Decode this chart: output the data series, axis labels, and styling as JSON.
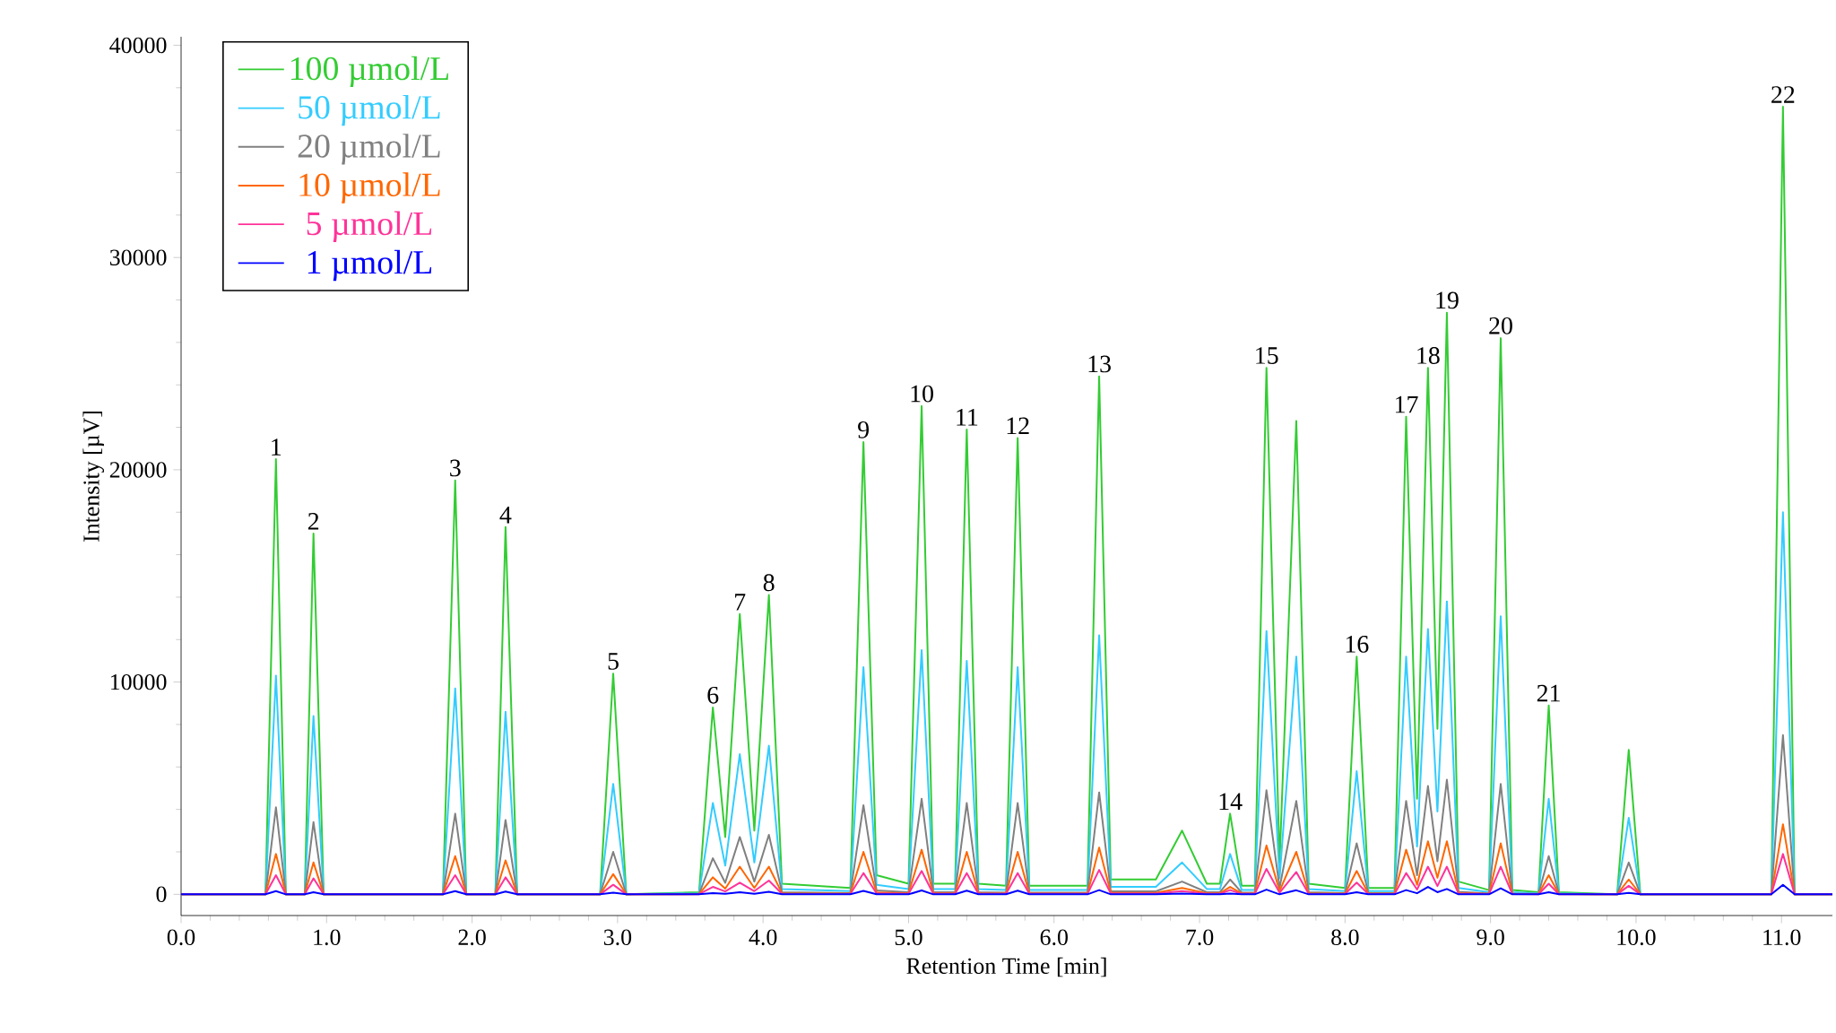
{
  "chart_data": {
    "type": "line",
    "xlabel": "Retention Time [min]",
    "ylabel": "Intensity [µV]",
    "xlim": [
      0,
      11.35
    ],
    "ylim": [
      -1000,
      40400
    ],
    "xticks": [
      {
        "value": 0,
        "label": "0.0"
      },
      {
        "value": 1,
        "label": "1.0"
      },
      {
        "value": 2,
        "label": "2.0"
      },
      {
        "value": 3,
        "label": "3.0"
      },
      {
        "value": 4,
        "label": "4.0"
      },
      {
        "value": 5,
        "label": "5.0"
      },
      {
        "value": 6,
        "label": "6.0"
      },
      {
        "value": 7,
        "label": "7.0"
      },
      {
        "value": 8,
        "label": "8.0"
      },
      {
        "value": 9,
        "label": "9.0"
      },
      {
        "value": 10,
        "label": "10.0"
      },
      {
        "value": 11,
        "label": "11.0"
      }
    ],
    "yticks": [
      0,
      10000,
      20000,
      30000,
      40000
    ],
    "legend": "top left",
    "x": [
      0,
      0.58,
      0.652,
      0.72,
      0.85,
      0.91,
      0.98,
      1.8,
      1.884,
      1.96,
      2.16,
      2.23,
      2.31,
      2.88,
      2.97,
      3.06,
      3.56,
      3.655,
      3.74,
      3.84,
      3.94,
      4.04,
      4.13,
      4.6,
      4.69,
      4.78,
      5.0,
      5.09,
      5.17,
      5.32,
      5.4,
      5.48,
      5.67,
      5.75,
      5.83,
      6.23,
      6.31,
      6.39,
      6.7,
      6.88,
      7.05,
      7.14,
      7.21,
      7.29,
      7.38,
      7.46,
      7.55,
      7.665,
      7.75,
      8.0,
      8.08,
      8.16,
      8.34,
      8.42,
      8.495,
      8.57,
      8.635,
      8.7,
      8.78,
      8.99,
      9.07,
      9.15,
      9.33,
      9.4,
      9.47,
      9.87,
      9.95,
      10.03,
      10.5,
      10.93,
      11.01,
      11.09,
      11.35
    ],
    "series": [
      {
        "name": "100 µmol/L",
        "color": "#33cc33",
        "values": [
          0,
          0,
          20500,
          0,
          0,
          17000,
          0,
          0,
          19500,
          0,
          0,
          17300,
          0,
          0,
          10400,
          0,
          100,
          8800,
          2700,
          13200,
          3000,
          14100,
          500,
          300,
          21300,
          900,
          500,
          23000,
          500,
          500,
          21900,
          500,
          400,
          21500,
          400,
          400,
          24400,
          700,
          700,
          3000,
          500,
          500,
          3800,
          400,
          400,
          24800,
          1500,
          22300,
          500,
          300,
          11200,
          300,
          300,
          22500,
          4500,
          24800,
          7800,
          27400,
          600,
          200,
          26200,
          200,
          100,
          8900,
          100,
          0,
          6800,
          0,
          0,
          0,
          37100,
          0,
          0
        ]
      },
      {
        "name": "50 µmol/L",
        "color": "#33ccff",
        "values": [
          0,
          0,
          10300,
          0,
          0,
          8400,
          0,
          0,
          9700,
          0,
          0,
          8600,
          0,
          0,
          5200,
          0,
          50,
          4300,
          1350,
          6600,
          1500,
          7000,
          250,
          150,
          10700,
          450,
          250,
          11500,
          250,
          250,
          11000,
          250,
          200,
          10700,
          200,
          200,
          12200,
          350,
          350,
          1500,
          250,
          250,
          1900,
          200,
          200,
          12400,
          750,
          11200,
          250,
          150,
          5800,
          150,
          150,
          11200,
          2250,
          12500,
          3900,
          13800,
          300,
          100,
          13100,
          100,
          50,
          4500,
          50,
          0,
          3600,
          0,
          0,
          0,
          18000,
          0,
          0
        ]
      },
      {
        "name": "20 µmol/L",
        "color": "#808080",
        "values": [
          0,
          0,
          4100,
          0,
          0,
          3400,
          0,
          0,
          3800,
          0,
          0,
          3500,
          0,
          0,
          2000,
          0,
          20,
          1700,
          540,
          2700,
          600,
          2800,
          100,
          60,
          4200,
          180,
          100,
          4500,
          100,
          100,
          4300,
          100,
          80,
          4300,
          80,
          80,
          4800,
          140,
          140,
          600,
          100,
          100,
          700,
          80,
          80,
          4900,
          300,
          4400,
          100,
          60,
          2400,
          60,
          60,
          4400,
          900,
          5100,
          1560,
          5400,
          120,
          40,
          5200,
          40,
          20,
          1800,
          20,
          0,
          1500,
          0,
          0,
          0,
          7500,
          0,
          0
        ]
      },
      {
        "name": "10 µmol/L",
        "color": "#ff6600",
        "values": [
          0,
          0,
          1900,
          0,
          0,
          1500,
          0,
          0,
          1800,
          0,
          0,
          1600,
          0,
          0,
          950,
          0,
          10,
          800,
          270,
          1300,
          300,
          1300,
          50,
          30,
          2000,
          90,
          50,
          2100,
          50,
          50,
          2000,
          50,
          40,
          2000,
          40,
          40,
          2200,
          70,
          70,
          300,
          50,
          50,
          350,
          40,
          40,
          2300,
          150,
          2000,
          50,
          30,
          1100,
          30,
          30,
          2100,
          450,
          2500,
          780,
          2500,
          60,
          20,
          2400,
          20,
          10,
          900,
          10,
          0,
          700,
          0,
          0,
          0,
          3300,
          0,
          0
        ]
      },
      {
        "name": "5 µmol/L",
        "color": "#ff3399",
        "values": [
          0,
          0,
          900,
          0,
          0,
          750,
          0,
          0,
          900,
          0,
          0,
          800,
          0,
          0,
          450,
          0,
          5,
          350,
          135,
          550,
          150,
          650,
          25,
          15,
          1000,
          45,
          25,
          1100,
          25,
          25,
          1000,
          25,
          20,
          1000,
          20,
          20,
          1150,
          35,
          35,
          150,
          25,
          25,
          200,
          20,
          20,
          1200,
          75,
          1050,
          25,
          15,
          550,
          15,
          15,
          1000,
          225,
          1300,
          390,
          1300,
          30,
          10,
          1300,
          10,
          5,
          500,
          5,
          0,
          400,
          0,
          0,
          0,
          1900,
          0,
          0
        ]
      },
      {
        "name": "1 µmol/L",
        "color": "#0000ff",
        "values": [
          0,
          0,
          150,
          0,
          0,
          100,
          0,
          0,
          150,
          0,
          0,
          130,
          0,
          0,
          80,
          0,
          0,
          60,
          20,
          100,
          20,
          120,
          0,
          0,
          160,
          0,
          0,
          180,
          0,
          0,
          170,
          0,
          0,
          170,
          0,
          0,
          200,
          0,
          0,
          30,
          0,
          0,
          40,
          0,
          0,
          220,
          0,
          190,
          0,
          0,
          100,
          0,
          0,
          200,
          50,
          350,
          100,
          250,
          0,
          0,
          280,
          0,
          0,
          100,
          0,
          0,
          70,
          0,
          0,
          0,
          450,
          0,
          0
        ]
      }
    ],
    "annotations": [
      {
        "text": "1",
        "x": 0.652,
        "y": 20500
      },
      {
        "text": "2",
        "x": 0.91,
        "y": 17000
      },
      {
        "text": "3",
        "x": 1.884,
        "y": 19500
      },
      {
        "text": "4",
        "x": 2.23,
        "y": 17300
      },
      {
        "text": "5",
        "x": 2.97,
        "y": 10400
      },
      {
        "text": "6",
        "x": 3.655,
        "y": 8800
      },
      {
        "text": "7",
        "x": 3.84,
        "y": 13200
      },
      {
        "text": "8",
        "x": 4.04,
        "y": 14100
      },
      {
        "text": "9",
        "x": 4.69,
        "y": 21300
      },
      {
        "text": "10",
        "x": 5.09,
        "y": 23000
      },
      {
        "text": "11",
        "x": 5.4,
        "y": 21900
      },
      {
        "text": "12",
        "x": 5.75,
        "y": 21500
      },
      {
        "text": "13",
        "x": 6.31,
        "y": 24400
      },
      {
        "text": "14",
        "x": 7.21,
        "y": 3800
      },
      {
        "text": "15",
        "x": 7.46,
        "y": 24800
      },
      {
        "text": "16",
        "x": 8.08,
        "y": 11200
      },
      {
        "text": "17",
        "x": 8.42,
        "y": 22500
      },
      {
        "text": "18",
        "x": 8.57,
        "y": 24800
      },
      {
        "text": "19",
        "x": 8.7,
        "y": 27400
      },
      {
        "text": "20",
        "x": 9.07,
        "y": 26200
      },
      {
        "text": "21",
        "x": 9.4,
        "y": 8900
      },
      {
        "text": "22",
        "x": 11.01,
        "y": 37100
      }
    ]
  }
}
